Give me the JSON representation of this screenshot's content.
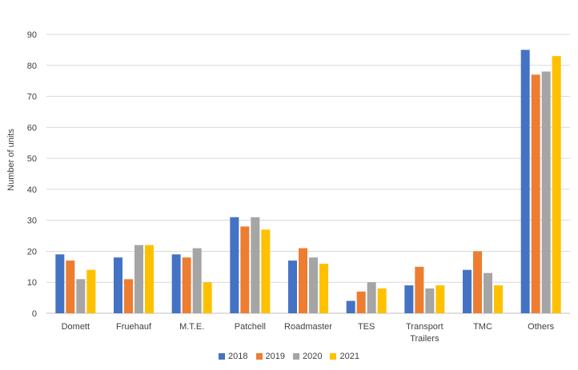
{
  "chart_data": {
    "type": "bar",
    "title": "",
    "xlabel": "",
    "ylabel": "Number of units",
    "ylim": [
      0,
      90
    ],
    "yticks": [
      0,
      10,
      20,
      30,
      40,
      50,
      60,
      70,
      80,
      90
    ],
    "grid": true,
    "legend_position": "bottom",
    "categories": [
      "Domett",
      "Fruehauf",
      "M.T.E.",
      "Patchell",
      "Roadmaster",
      "TES",
      "Transport Trailers",
      "TMC",
      "Others"
    ],
    "category_lines": [
      [
        "Domett"
      ],
      [
        "Fruehauf"
      ],
      [
        "M.T.E."
      ],
      [
        "Patchell"
      ],
      [
        "Roadmaster"
      ],
      [
        "TES"
      ],
      [
        "Transport",
        "Trailers"
      ],
      [
        "TMC"
      ],
      [
        "Others"
      ]
    ],
    "series": [
      {
        "name": "2018",
        "color": "#4472c4",
        "values": [
          19,
          18,
          19,
          31,
          17,
          4,
          9,
          14,
          85
        ]
      },
      {
        "name": "2019",
        "color": "#ed7d31",
        "values": [
          17,
          11,
          18,
          28,
          21,
          7,
          15,
          20,
          77
        ]
      },
      {
        "name": "2020",
        "color": "#a5a5a5",
        "values": [
          11,
          22,
          21,
          31,
          18,
          10,
          8,
          13,
          78
        ]
      },
      {
        "name": "2021",
        "color": "#ffc000",
        "values": [
          14,
          22,
          10,
          27,
          16,
          8,
          9,
          9,
          83
        ]
      }
    ]
  }
}
